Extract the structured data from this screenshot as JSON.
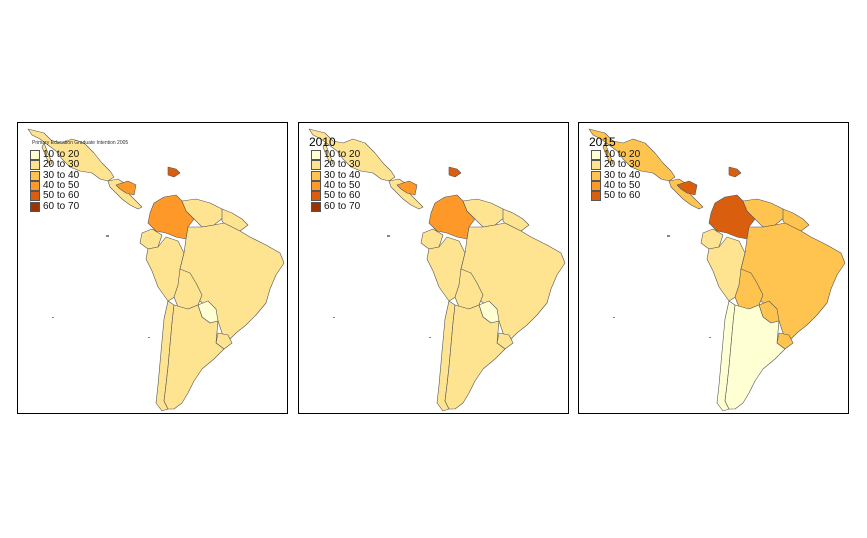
{
  "panels": [
    {
      "title": "",
      "legend_title": "Primary Education Graduate Intention 2005",
      "legend": [
        {
          "label": "10 to 20",
          "color": "#ffffd4"
        },
        {
          "label": "20 to 30",
          "color": "#fee391"
        },
        {
          "label": "30 to 40",
          "color": "#fec44f"
        },
        {
          "label": "40 to 50",
          "color": "#fe9929"
        },
        {
          "label": "50 to 60",
          "color": "#d95f0e"
        },
        {
          "label": "60 to 70",
          "color": "#993404"
        }
      ],
      "regions": {
        "mexico": "#fee391",
        "central_america": "#fee391",
        "nicaragua": "#fe9929",
        "caribbean": "#d95f0e",
        "colombia": "#fe9929",
        "venezuela": "#fee391",
        "guianas": "#fee391",
        "ecuador": "#fee391",
        "peru": "#fee391",
        "brazil": "#fee391",
        "bolivia": "#fee391",
        "paraguay": "#ffffd4",
        "uruguay": "#fee391",
        "chile": "#fee391",
        "argentina": "#fee391"
      }
    },
    {
      "title": "2010",
      "legend_title": "",
      "legend": [
        {
          "label": "10 to 20",
          "color": "#ffffd4"
        },
        {
          "label": "20 to 30",
          "color": "#fee391"
        },
        {
          "label": "30 to 40",
          "color": "#fec44f"
        },
        {
          "label": "40 to 50",
          "color": "#fe9929"
        },
        {
          "label": "50 to 60",
          "color": "#d95f0e"
        },
        {
          "label": "60 to 70",
          "color": "#993404"
        }
      ],
      "regions": {
        "mexico": "#fee391",
        "central_america": "#fee391",
        "nicaragua": "#fe9929",
        "caribbean": "#d95f0e",
        "colombia": "#fe9929",
        "venezuela": "#fee391",
        "guianas": "#fee391",
        "ecuador": "#fee391",
        "peru": "#fee391",
        "brazil": "#fee391",
        "bolivia": "#fee391",
        "paraguay": "#ffffd4",
        "uruguay": "#fee391",
        "chile": "#fee391",
        "argentina": "#fee391"
      }
    },
    {
      "title": "2015",
      "legend_title": "",
      "legend": [
        {
          "label": "10 to 20",
          "color": "#ffffd4"
        },
        {
          "label": "20 to 30",
          "color": "#fee391"
        },
        {
          "label": "30 to 40",
          "color": "#fec44f"
        },
        {
          "label": "40 to 50",
          "color": "#fe9929"
        },
        {
          "label": "50 to 60",
          "color": "#d95f0e"
        }
      ],
      "regions": {
        "mexico": "#fec44f",
        "central_america": "#fec44f",
        "nicaragua": "#d95f0e",
        "caribbean": "#d95f0e",
        "colombia": "#d95f0e",
        "venezuela": "#fec44f",
        "guianas": "#fec44f",
        "ecuador": "#fee391",
        "peru": "#fee391",
        "brazil": "#fec44f",
        "bolivia": "#fec44f",
        "paraguay": "#fec44f",
        "uruguay": "#fec44f",
        "chile": "#ffffd4",
        "argentina": "#ffffd4"
      }
    }
  ]
}
